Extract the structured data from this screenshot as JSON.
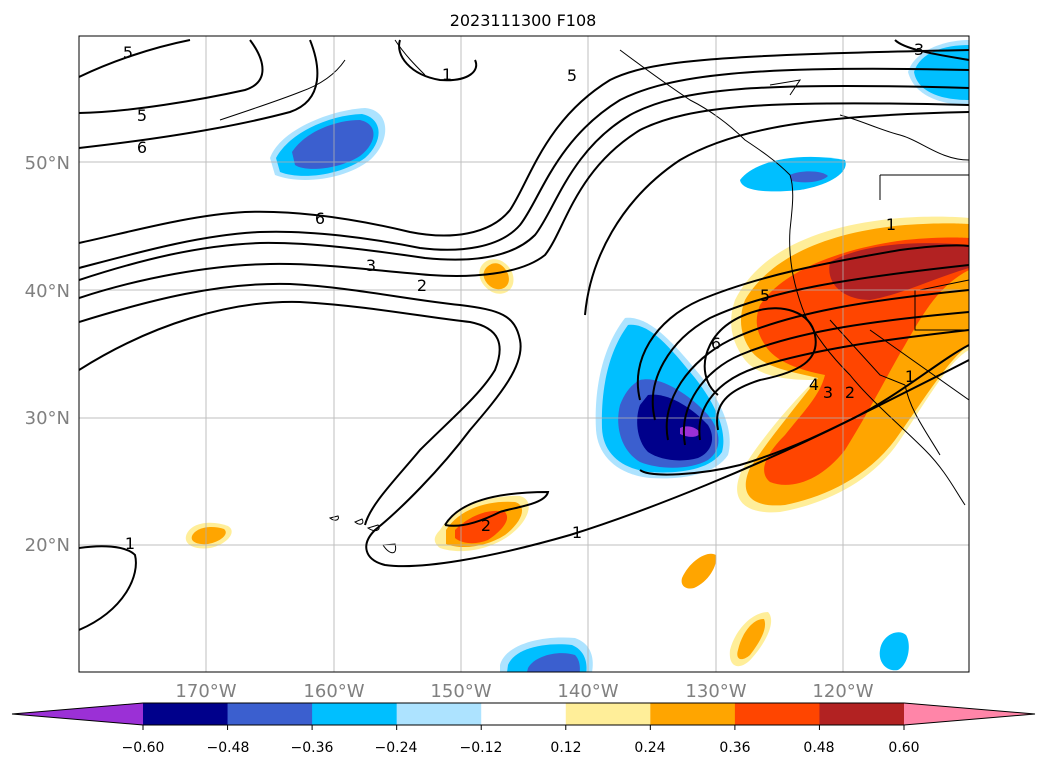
{
  "title": "2023111300 F108",
  "map": {
    "lon_labels": [
      "170°W",
      "160°W",
      "150°W",
      "140°W",
      "130°W",
      "120°W"
    ],
    "lat_labels": [
      "50°N",
      "40°N",
      "30°N",
      "20°N"
    ],
    "contour_labels": [
      "5",
      "5",
      "6",
      "6",
      "3",
      "2",
      "1",
      "5",
      "3",
      "1",
      "6",
      "5",
      "4",
      "3",
      "2",
      "1",
      "2",
      "1",
      "1"
    ],
    "colors": {
      "land_line": "#000000",
      "grid": "#b0b0b0",
      "contour": "#000000"
    }
  },
  "colorbar": {
    "ticks": [
      "−0.60",
      "−0.48",
      "−0.36",
      "−0.24",
      "−0.12",
      "0.12",
      "0.24",
      "0.36",
      "0.48",
      "0.60"
    ],
    "colors": [
      "#9b30d6",
      "#00008b",
      "#3b5fcf",
      "#00bfff",
      "#ade3ff",
      "#ffffff",
      "#ffee99",
      "#ffa500",
      "#ff4500",
      "#b22222",
      "#ff85a8"
    ]
  }
}
